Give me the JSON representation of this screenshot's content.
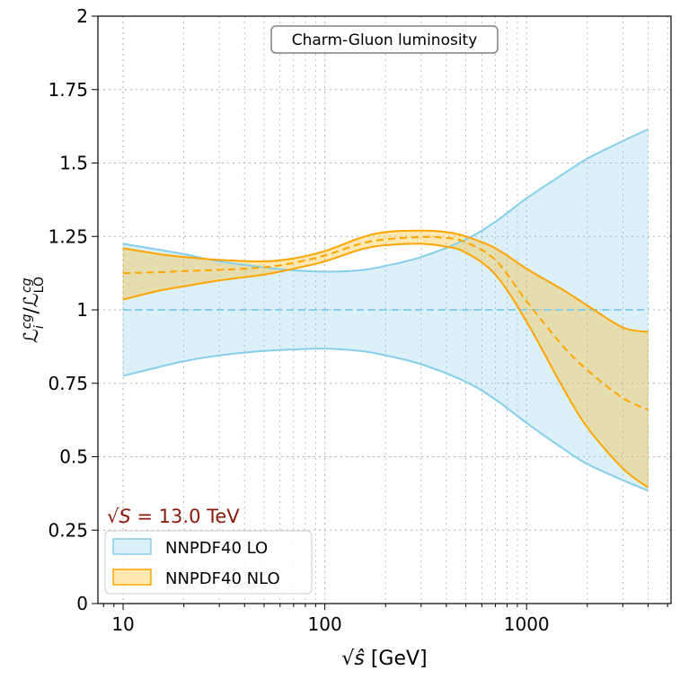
{
  "chart_data": {
    "type": "area",
    "title": "Charm-Gluon luminosity",
    "xlabel_prefix": "√",
    "xlabel_var": "ŝ",
    "xlabel_unit": " [GeV]",
    "ylabel_main": "ℒ",
    "ylabel_sub_i": "i",
    "ylabel_sup": "cg",
    "ylabel_sub_lo": "LO",
    "xscale": "log",
    "xlim": [
      7.5,
      5200
    ],
    "ylim": [
      0,
      2
    ],
    "xticks": [
      10,
      100,
      1000
    ],
    "xtick_labels": [
      "10",
      "100",
      "1000"
    ],
    "yticks": [
      0,
      0.25,
      0.5,
      0.75,
      1,
      1.25,
      1.5,
      1.75,
      2
    ],
    "ytick_labels": [
      "0",
      "0.25",
      "0.5",
      "0.75",
      "1",
      "1.25",
      "1.5",
      "1.75",
      "2"
    ],
    "grid": true,
    "annotation": "√S = 13.0 TeV",
    "annotation_prefix": "√",
    "annotation_var": "S",
    "annotation_value": " = 13.0 TeV",
    "legend_position": "lower-left",
    "series": [
      {
        "name": "NNPDF40 LO",
        "color": "#87CEEB",
        "fill_color": "#87CEEB",
        "fill_opacity": 0.3,
        "x": [
          10,
          15,
          20,
          30,
          50,
          70,
          100,
          150,
          200,
          300,
          500,
          700,
          1000,
          1500,
          2000,
          3000,
          4000
        ],
        "central": [
          1,
          1,
          1,
          1,
          1,
          1,
          1,
          1,
          1,
          1,
          1,
          1,
          1,
          1,
          1,
          1,
          1
        ],
        "upper": [
          1.225,
          1.205,
          1.19,
          1.165,
          1.145,
          1.135,
          1.13,
          1.135,
          1.15,
          1.18,
          1.24,
          1.3,
          1.38,
          1.46,
          1.515,
          1.575,
          1.615
        ],
        "lower": [
          0.775,
          0.805,
          0.825,
          0.845,
          0.86,
          0.865,
          0.868,
          0.86,
          0.845,
          0.815,
          0.755,
          0.695,
          0.615,
          0.53,
          0.475,
          0.42,
          0.385
        ]
      },
      {
        "name": "NNPDF40 NLO",
        "color": "#FFA500",
        "fill_color": "#FFB400",
        "fill_opacity": 0.3,
        "x": [
          10,
          15,
          20,
          30,
          50,
          70,
          100,
          150,
          200,
          300,
          400,
          500,
          700,
          1000,
          1500,
          2000,
          3000,
          4000
        ],
        "central": [
          1.125,
          1.128,
          1.132,
          1.136,
          1.145,
          1.16,
          1.185,
          1.225,
          1.24,
          1.248,
          1.245,
          1.23,
          1.17,
          1.03,
          0.88,
          0.795,
          0.7,
          0.66
        ],
        "upper": [
          1.21,
          1.19,
          1.18,
          1.17,
          1.165,
          1.175,
          1.2,
          1.245,
          1.265,
          1.27,
          1.265,
          1.25,
          1.21,
          1.14,
          1.07,
          1.015,
          0.94,
          0.925
        ],
        "lower": [
          1.035,
          1.065,
          1.08,
          1.1,
          1.12,
          1.14,
          1.165,
          1.205,
          1.22,
          1.225,
          1.215,
          1.195,
          1.12,
          0.96,
          0.74,
          0.6,
          0.46,
          0.395
        ]
      }
    ]
  }
}
